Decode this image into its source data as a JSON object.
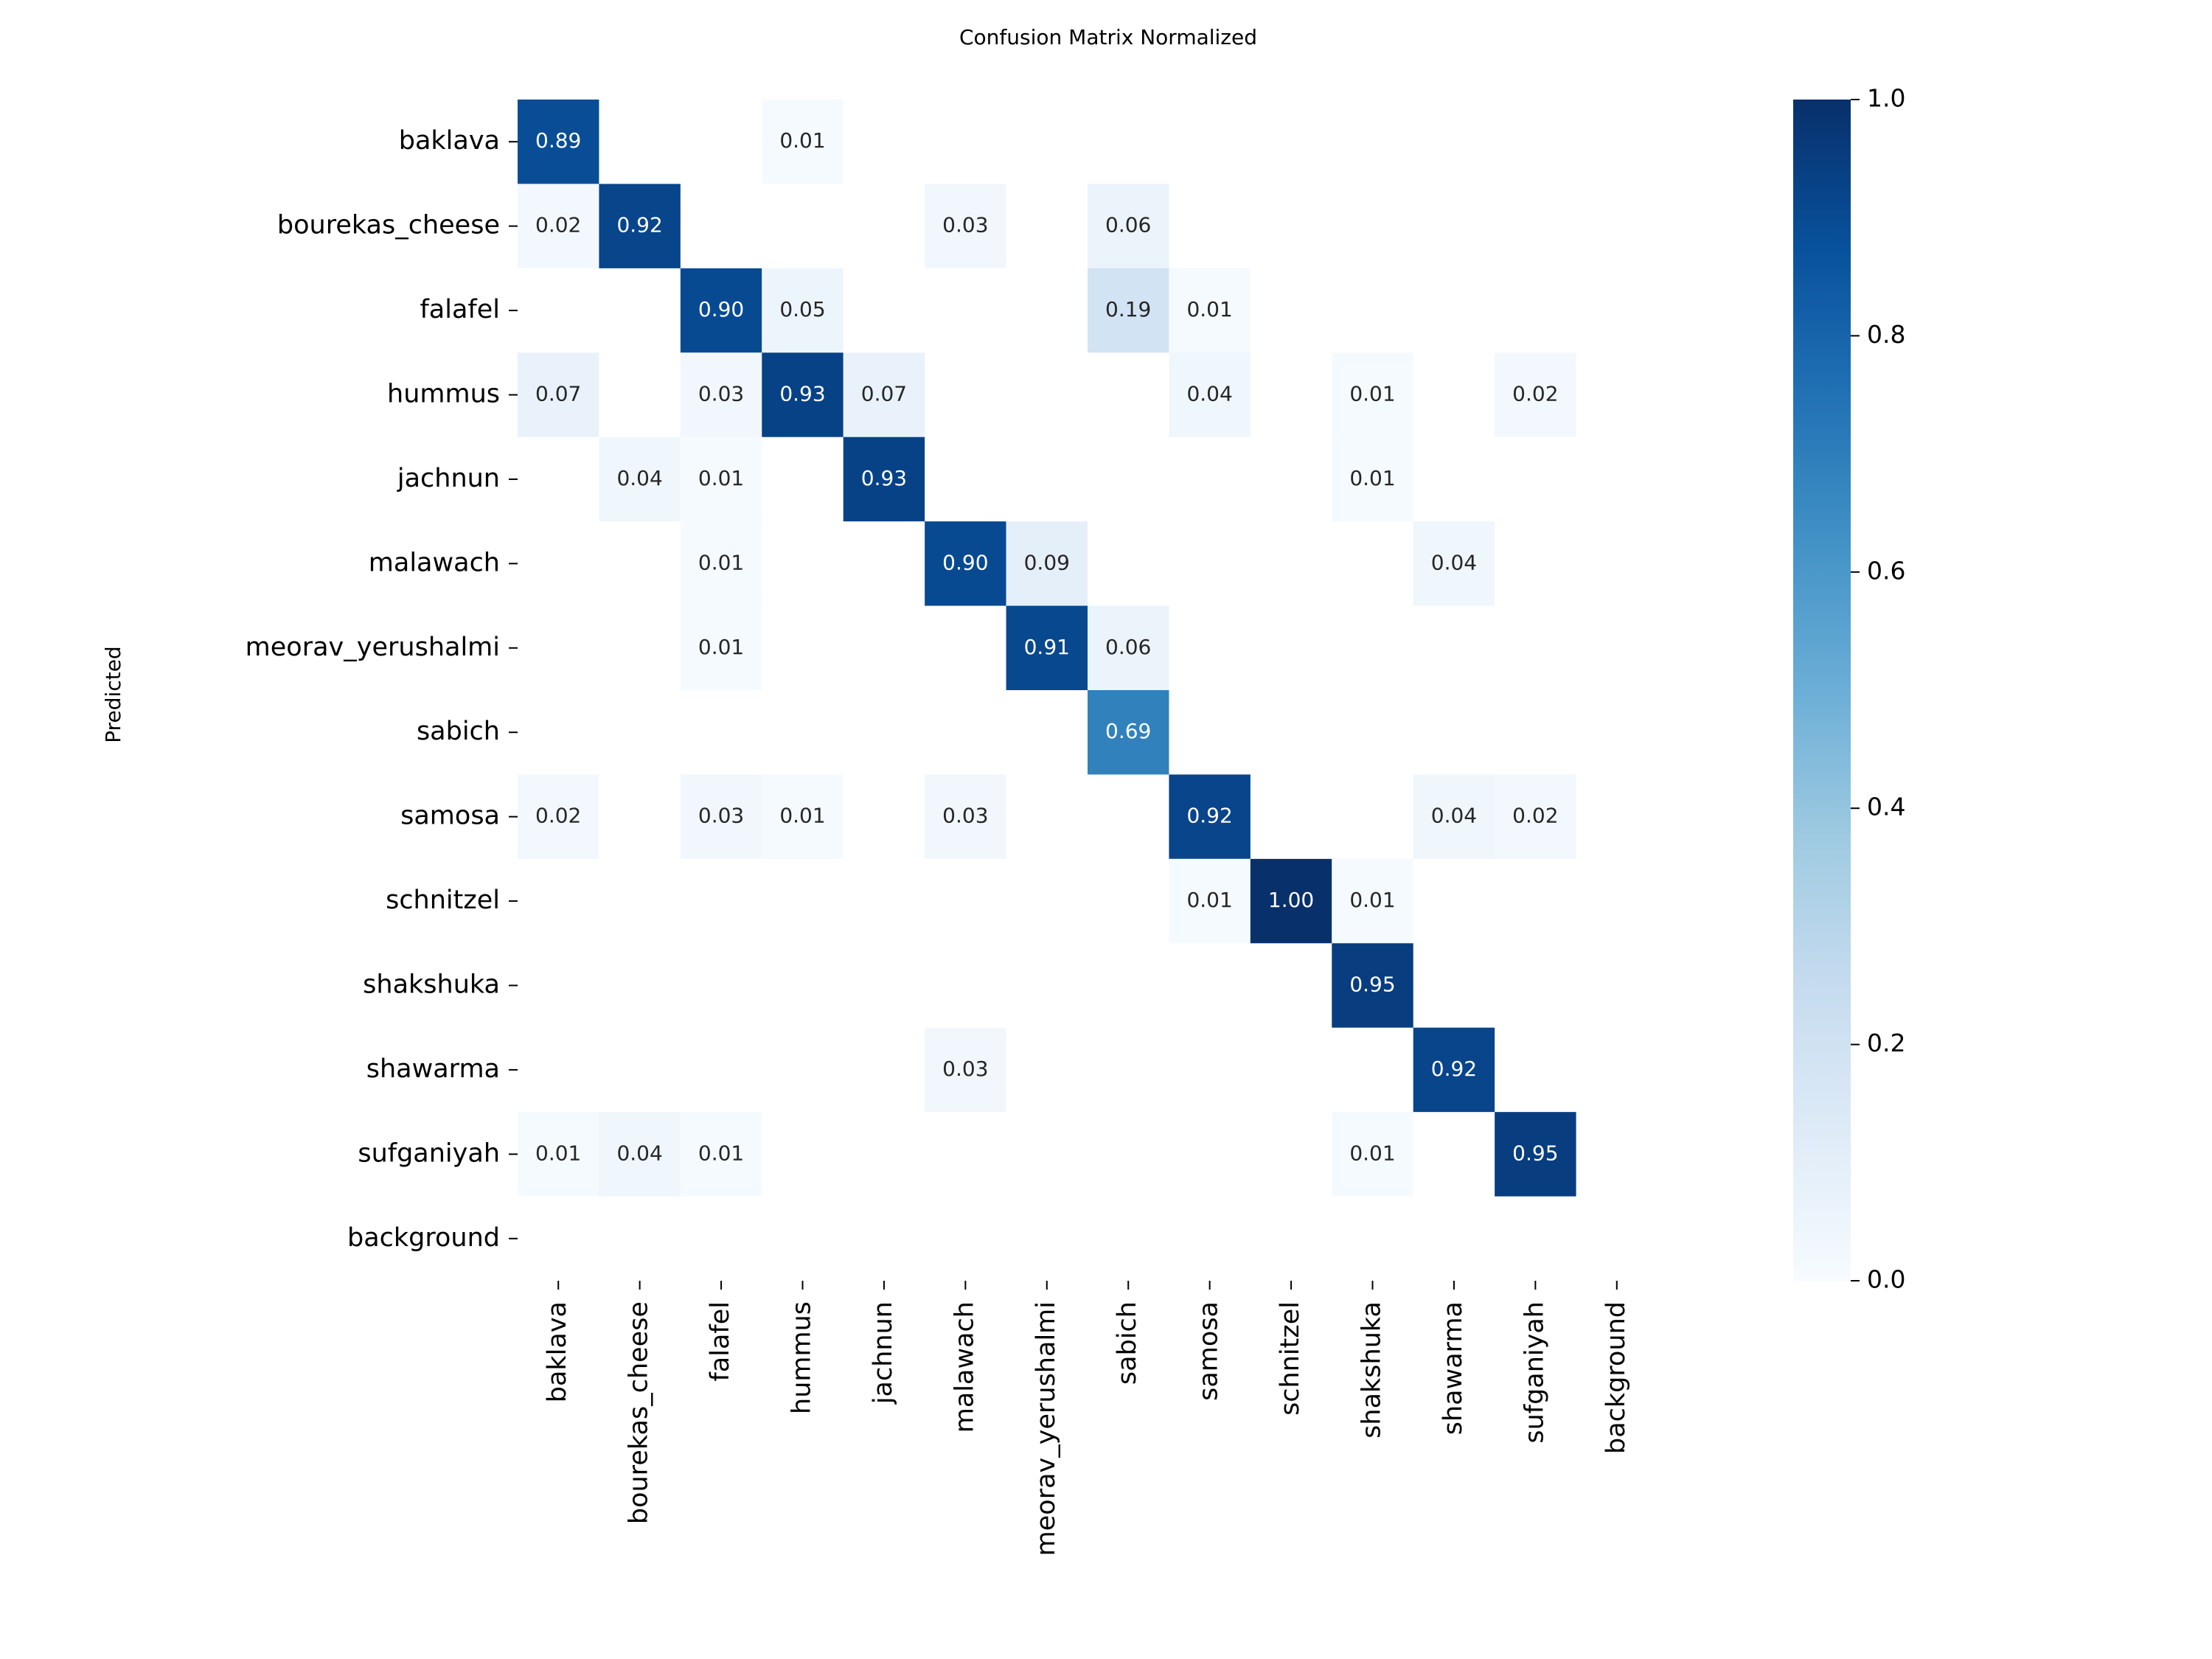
{
  "chart_data": {
    "type": "heatmap",
    "title": "Confusion Matrix Normalized",
    "y_label": "Predicted",
    "categories": [
      "baklava",
      "bourekas_cheese",
      "falafel",
      "hummus",
      "jachnun",
      "malawach",
      "meorav_yerushalmi",
      "sabich",
      "samosa",
      "schnitzel",
      "shakshuka",
      "shawarma",
      "sufganiyah",
      "background"
    ],
    "values": [
      [
        0.89,
        null,
        null,
        0.01,
        null,
        null,
        null,
        null,
        null,
        null,
        null,
        null,
        null,
        null
      ],
      [
        0.02,
        0.92,
        null,
        null,
        null,
        0.03,
        null,
        0.06,
        null,
        null,
        null,
        null,
        null,
        null
      ],
      [
        null,
        null,
        0.9,
        0.05,
        null,
        null,
        null,
        0.19,
        0.01,
        null,
        null,
        null,
        null,
        null
      ],
      [
        0.07,
        null,
        0.03,
        0.93,
        0.07,
        null,
        null,
        null,
        0.04,
        null,
        0.01,
        null,
        0.02,
        null
      ],
      [
        null,
        0.04,
        0.01,
        null,
        0.93,
        null,
        null,
        null,
        null,
        null,
        0.01,
        null,
        null,
        null
      ],
      [
        null,
        null,
        0.01,
        null,
        null,
        0.9,
        0.09,
        null,
        null,
        null,
        null,
        0.04,
        null,
        null
      ],
      [
        null,
        null,
        0.01,
        null,
        null,
        null,
        0.91,
        0.06,
        null,
        null,
        null,
        null,
        null,
        null
      ],
      [
        null,
        null,
        null,
        null,
        null,
        null,
        null,
        0.69,
        null,
        null,
        null,
        null,
        null,
        null
      ],
      [
        0.02,
        null,
        0.03,
        0.01,
        null,
        0.03,
        null,
        null,
        0.92,
        null,
        null,
        0.04,
        0.02,
        null
      ],
      [
        null,
        null,
        null,
        null,
        null,
        null,
        null,
        null,
        0.01,
        1.0,
        0.01,
        null,
        null,
        null
      ],
      [
        null,
        null,
        null,
        null,
        null,
        null,
        null,
        null,
        null,
        null,
        0.95,
        null,
        null,
        null
      ],
      [
        null,
        null,
        null,
        null,
        null,
        0.03,
        null,
        null,
        null,
        null,
        null,
        0.92,
        null,
        null
      ],
      [
        0.01,
        0.04,
        0.01,
        null,
        null,
        null,
        null,
        null,
        null,
        null,
        0.01,
        null,
        0.95,
        null
      ],
      [
        null,
        null,
        null,
        null,
        null,
        null,
        null,
        null,
        null,
        null,
        null,
        null,
        null,
        null
      ]
    ],
    "value_labels": [
      [
        "0.89",
        null,
        null,
        "0.01",
        null,
        null,
        null,
        null,
        null,
        null,
        null,
        null,
        null,
        null
      ],
      [
        "0.02",
        "0.92",
        null,
        null,
        null,
        "0.03",
        null,
        "0.06",
        null,
        null,
        null,
        null,
        null,
        null
      ],
      [
        null,
        null,
        "0.90",
        "0.05",
        null,
        null,
        null,
        "0.19",
        "0.01",
        null,
        null,
        null,
        null,
        null
      ],
      [
        "0.07",
        null,
        "0.03",
        "0.93",
        "0.07",
        null,
        null,
        null,
        "0.04",
        null,
        "0.01",
        null,
        "0.02",
        null
      ],
      [
        null,
        "0.04",
        "0.01",
        null,
        "0.93",
        null,
        null,
        null,
        null,
        null,
        "0.01",
        null,
        null,
        null
      ],
      [
        null,
        null,
        "0.01",
        null,
        null,
        "0.90",
        "0.09",
        null,
        null,
        null,
        null,
        "0.04",
        null,
        null
      ],
      [
        null,
        null,
        "0.01",
        null,
        null,
        null,
        "0.91",
        "0.06",
        null,
        null,
        null,
        null,
        null,
        null
      ],
      [
        null,
        null,
        null,
        null,
        null,
        null,
        null,
        "0.69",
        null,
        null,
        null,
        null,
        null,
        null
      ],
      [
        "0.02",
        null,
        "0.03",
        "0.01",
        null,
        "0.03",
        null,
        null,
        "0.92",
        null,
        null,
        "0.04",
        "0.02",
        null
      ],
      [
        null,
        null,
        null,
        null,
        null,
        null,
        null,
        null,
        "0.01",
        "1.00",
        "0.01",
        null,
        null,
        null
      ],
      [
        null,
        null,
        null,
        null,
        null,
        null,
        null,
        null,
        null,
        null,
        "0.95",
        null,
        null,
        null
      ],
      [
        null,
        null,
        null,
        null,
        null,
        "0.03",
        null,
        null,
        null,
        null,
        null,
        "0.92",
        null,
        null
      ],
      [
        "0.01",
        "0.04",
        "0.01",
        null,
        null,
        null,
        null,
        null,
        null,
        null,
        "0.01",
        null,
        "0.95",
        null
      ],
      [
        null,
        null,
        null,
        null,
        null,
        null,
        null,
        null,
        null,
        null,
        null,
        null,
        null,
        null
      ]
    ],
    "colormap": [
      "#f7fbff",
      "#deebf7",
      "#c6dbef",
      "#9ecae1",
      "#6baed6",
      "#4292c6",
      "#2171b5",
      "#08519c",
      "#08306b"
    ],
    "clim": [
      0,
      1
    ],
    "cticks": [
      {
        "value": 0,
        "label": "0.0"
      },
      0.2,
      0.4,
      0.6,
      0.8,
      {
        "value": 1,
        "label": "1.0"
      }
    ]
  }
}
